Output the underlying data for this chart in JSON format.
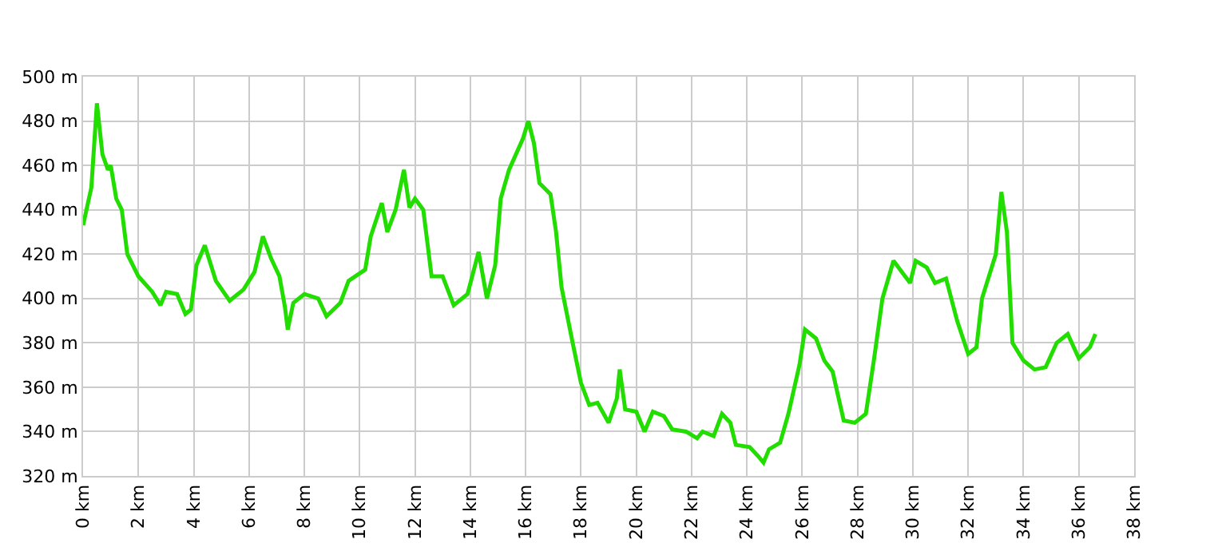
{
  "chart_data": {
    "type": "line",
    "x": [
      0,
      0.3,
      0.5,
      0.7,
      0.9,
      1.0,
      1.2,
      1.4,
      1.6,
      2.0,
      2.5,
      2.8,
      3.0,
      3.4,
      3.7,
      3.9,
      4.1,
      4.4,
      4.8,
      5.3,
      5.8,
      6.2,
      6.5,
      6.8,
      7.1,
      7.3,
      7.4,
      7.6,
      8.0,
      8.5,
      8.8,
      9.3,
      9.6,
      10.2,
      10.4,
      10.8,
      11.0,
      11.3,
      11.6,
      11.8,
      12.0,
      12.3,
      12.6,
      13.0,
      13.4,
      13.9,
      14.3,
      14.6,
      14.9,
      15.1,
      15.4,
      15.9,
      16.1,
      16.3,
      16.5,
      16.9,
      17.1,
      17.3,
      17.7,
      18.0,
      18.3,
      18.6,
      19.0,
      19.3,
      19.4,
      19.6,
      20.0,
      20.3,
      20.6,
      21.0,
      21.3,
      21.8,
      22.2,
      22.4,
      22.8,
      23.1,
      23.4,
      23.6,
      24.1,
      24.4,
      24.6,
      24.8,
      25.2,
      25.5,
      25.9,
      26.1,
      26.5,
      26.8,
      27.1,
      27.5,
      27.9,
      28.3,
      28.6,
      28.9,
      29.3,
      29.6,
      29.9,
      30.1,
      30.5,
      30.8,
      31.2,
      31.6,
      32.0,
      32.3,
      32.5,
      33.0,
      33.2,
      33.4,
      33.6,
      34.0,
      34.4,
      34.8,
      35.2,
      35.6,
      36.0,
      36.4,
      36.6
    ],
    "series": [
      {
        "color": "#22dd00",
        "values": [
          433,
          450,
          488,
          465,
          458,
          460,
          445,
          440,
          420,
          410,
          403,
          397,
          403,
          402,
          393,
          395,
          415,
          424,
          408,
          399,
          404,
          412,
          428,
          418,
          410,
          396,
          386,
          398,
          402,
          400,
          392,
          398,
          408,
          413,
          428,
          443,
          430,
          440,
          458,
          441,
          445,
          440,
          410,
          410,
          397,
          402,
          421,
          400,
          415,
          445,
          458,
          472,
          480,
          470,
          452,
          447,
          430,
          405,
          380,
          362,
          352,
          353,
          344,
          355,
          368,
          350,
          349,
          340,
          349,
          347,
          341,
          340,
          337,
          340,
          338,
          348,
          344,
          334,
          333,
          329,
          326,
          332,
          335,
          348,
          370,
          386,
          382,
          372,
          367,
          345,
          344,
          348,
          373,
          400,
          417,
          412,
          407,
          417,
          414,
          407,
          409,
          390,
          375,
          378,
          400,
          420,
          448,
          430,
          380,
          372,
          368,
          369,
          380,
          384,
          373,
          378,
          384
        ]
      }
    ],
    "xlim": [
      0,
      38
    ],
    "xticks": [
      {
        "value": 0,
        "label": "0 km"
      },
      {
        "value": 2,
        "label": "2 km"
      },
      {
        "value": 4,
        "label": "4 km"
      },
      {
        "value": 6,
        "label": "6 km"
      },
      {
        "value": 8,
        "label": "8 km"
      },
      {
        "value": 10,
        "label": "10 km"
      },
      {
        "value": 12,
        "label": "12 km"
      },
      {
        "value": 14,
        "label": "14 km"
      },
      {
        "value": 16,
        "label": "16 km"
      },
      {
        "value": 18,
        "label": "18 km"
      },
      {
        "value": 20,
        "label": "20 km"
      },
      {
        "value": 22,
        "label": "22 km"
      },
      {
        "value": 24,
        "label": "24 km"
      },
      {
        "value": 26,
        "label": "26 km"
      },
      {
        "value": 28,
        "label": "28 km"
      },
      {
        "value": 30,
        "label": "30 km"
      },
      {
        "value": 32,
        "label": "32 km"
      },
      {
        "value": 34,
        "label": "34 km"
      },
      {
        "value": 36,
        "label": "36 km"
      },
      {
        "value": 38,
        "label": "38 km"
      }
    ],
    "ylim": [
      320,
      500
    ],
    "yticks": [
      {
        "value": 320,
        "label": "320 m"
      },
      {
        "value": 340,
        "label": "340 m"
      },
      {
        "value": 360,
        "label": "360 m"
      },
      {
        "value": 380,
        "label": "380 m"
      },
      {
        "value": 400,
        "label": "400 m"
      },
      {
        "value": 420,
        "label": "420 m"
      },
      {
        "value": 440,
        "label": "440 m"
      },
      {
        "value": 460,
        "label": "460 m"
      },
      {
        "value": 480,
        "label": "480 m"
      },
      {
        "value": 500,
        "label": "500 m"
      }
    ],
    "grid": true,
    "legend": false,
    "line_style": "solid"
  }
}
